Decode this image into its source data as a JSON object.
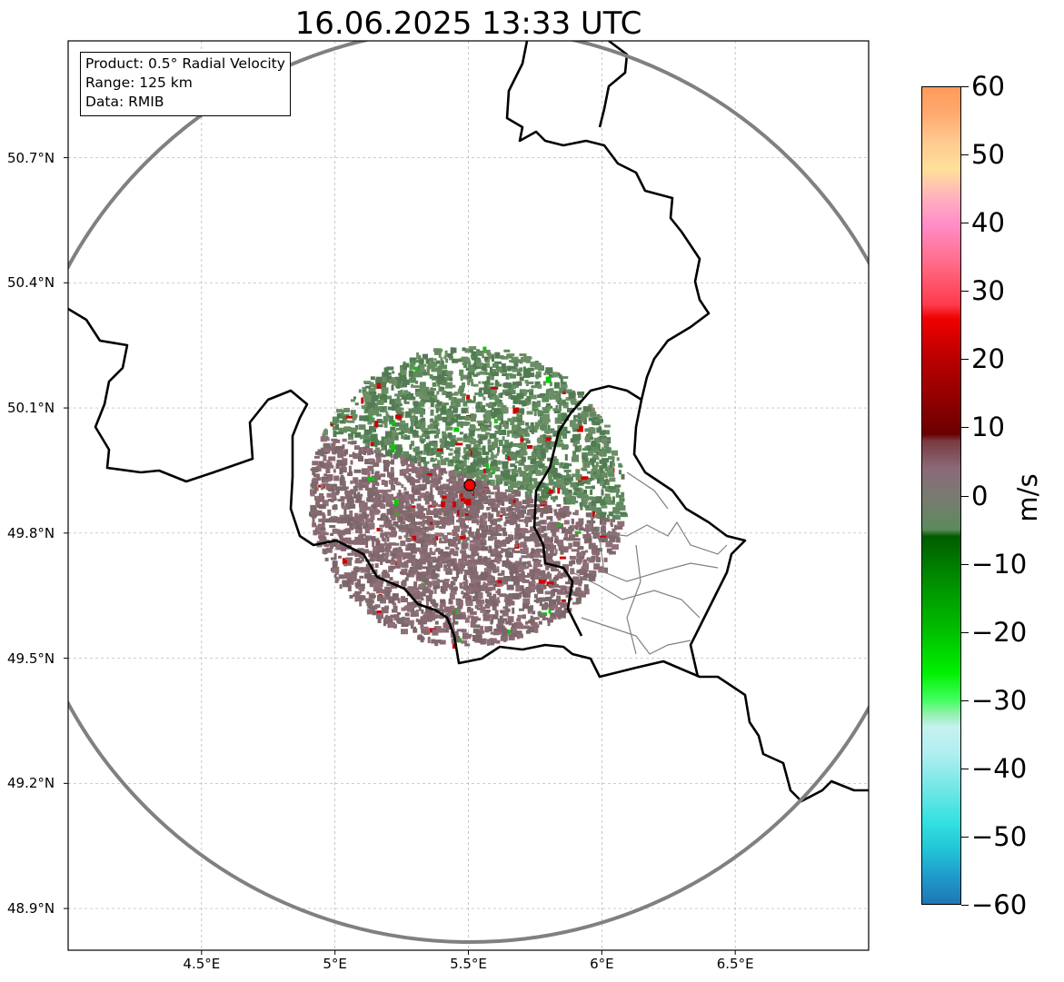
{
  "title": "16.06.2025 13:33 UTC",
  "info_box": {
    "product": "Product: 0.5° Radial Velocity",
    "range": "Range: 125 km",
    "data": "Data: RMIB"
  },
  "map": {
    "lon_range": [
      4.0,
      7.0
    ],
    "lat_range": [
      48.8,
      50.98
    ],
    "lat_ticks": [
      {
        "value": 48.9,
        "label": "48.9°N"
      },
      {
        "value": 49.2,
        "label": "49.2°N"
      },
      {
        "value": 49.5,
        "label": "49.5°N"
      },
      {
        "value": 49.8,
        "label": "49.8°N"
      },
      {
        "value": 50.1,
        "label": "50.1°N"
      },
      {
        "value": 50.4,
        "label": "50.4°N"
      },
      {
        "value": 50.7,
        "label": "50.7°N"
      }
    ],
    "lon_ticks": [
      {
        "value": 4.5,
        "label": "4.5°E"
      },
      {
        "value": 5.0,
        "label": "5°E"
      },
      {
        "value": 5.5,
        "label": "5.5°E"
      },
      {
        "value": 6.0,
        "label": "6°E"
      },
      {
        "value": 6.5,
        "label": "6.5°E"
      }
    ],
    "radar_site": {
      "lon": 5.505,
      "lat": 49.915
    },
    "range_ring_color": "#808080",
    "site_marker_color": "#ff0000",
    "border_color": "#000000",
    "district_color": "#808080"
  },
  "colorbar": {
    "unit": "m/s",
    "min": -60,
    "max": 60,
    "ticks": [
      {
        "value": 60,
        "label": "60"
      },
      {
        "value": 50,
        "label": "50"
      },
      {
        "value": 40,
        "label": "40"
      },
      {
        "value": 30,
        "label": "30"
      },
      {
        "value": 20,
        "label": "20"
      },
      {
        "value": 10,
        "label": "10"
      },
      {
        "value": 0,
        "label": "0"
      },
      {
        "value": -10,
        "label": "−10"
      },
      {
        "value": -20,
        "label": "−20"
      },
      {
        "value": -30,
        "label": "−30"
      },
      {
        "value": -40,
        "label": "−40"
      },
      {
        "value": -50,
        "label": "−50"
      },
      {
        "value": -60,
        "label": "−60"
      }
    ],
    "stops": [
      {
        "value": -60,
        "color": "#1f77b4"
      },
      {
        "value": -56,
        "color": "#1f9acb"
      },
      {
        "value": -52,
        "color": "#22c4d6"
      },
      {
        "value": -48,
        "color": "#33e0e0"
      },
      {
        "value": -42,
        "color": "#7fe8e8"
      },
      {
        "value": -38,
        "color": "#b0eef0"
      },
      {
        "value": -34,
        "color": "#c6f1f0"
      },
      {
        "value": -32,
        "color": "#90f0a8"
      },
      {
        "value": -30,
        "color": "#40ff60"
      },
      {
        "value": -26,
        "color": "#00f000"
      },
      {
        "value": -20,
        "color": "#00c000"
      },
      {
        "value": -12,
        "color": "#008a00"
      },
      {
        "value": -6,
        "color": "#005c00"
      },
      {
        "value": -5,
        "color": "#5c8a5c"
      },
      {
        "value": 0,
        "color": "#7a7a72"
      },
      {
        "value": 4,
        "color": "#8a6a78"
      },
      {
        "value": 8,
        "color": "#7a3a40"
      },
      {
        "value": 9,
        "color": "#6a0000"
      },
      {
        "value": 14,
        "color": "#900000"
      },
      {
        "value": 20,
        "color": "#b80000"
      },
      {
        "value": 26,
        "color": "#f00000"
      },
      {
        "value": 28,
        "color": "#ff3a4a"
      },
      {
        "value": 34,
        "color": "#ff6a88"
      },
      {
        "value": 40,
        "color": "#ff8ec8"
      },
      {
        "value": 44,
        "color": "#ffb4bc"
      },
      {
        "value": 48,
        "color": "#ffe09a"
      },
      {
        "value": 52,
        "color": "#ffc890"
      },
      {
        "value": 56,
        "color": "#ffaa70"
      },
      {
        "value": 60,
        "color": "#ff9a5a"
      }
    ]
  }
}
